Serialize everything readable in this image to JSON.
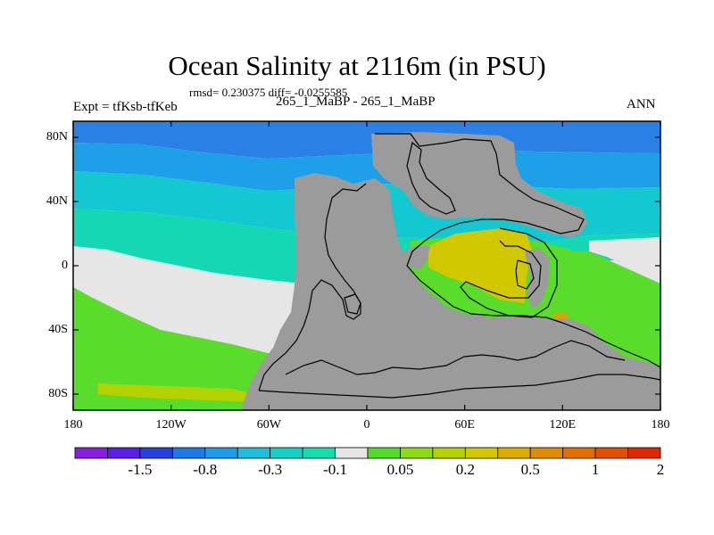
{
  "title": "Ocean Salinity at 2116m (in PSU)",
  "stats": "rmsd= 0.230375 diff= -0.0255585",
  "experiment": "Expt = tfKsb-tfKeb",
  "runs": "265_1_MaBP - 265_1_MaBP",
  "season": "ANN",
  "map": {
    "lon_range": [
      -180,
      180
    ],
    "lat_range": [
      -90,
      90
    ],
    "land_color": "#9b9b9b",
    "x_ticks": [
      {
        "lon": -180,
        "label": "180"
      },
      {
        "lon": -120,
        "label": "120W"
      },
      {
        "lon": -60,
        "label": "60W"
      },
      {
        "lon": 0,
        "label": "0"
      },
      {
        "lon": 60,
        "label": "60E"
      },
      {
        "lon": 120,
        "label": "120E"
      },
      {
        "lon": 180,
        "label": "180"
      }
    ],
    "y_ticks": [
      {
        "lat": 80,
        "label": "80N"
      },
      {
        "lat": 40,
        "label": "40N"
      },
      {
        "lat": 0,
        "label": "0"
      },
      {
        "lat": -40,
        "label": "40S"
      },
      {
        "lat": -80,
        "label": "80S"
      }
    ]
  },
  "colorbar": {
    "colors": [
      "#8a1ee0",
      "#5a1ee6",
      "#2840dc",
      "#1e78e6",
      "#1e9ae8",
      "#1ebedc",
      "#14d2c8",
      "#14dcaa",
      "#e6e6e6",
      "#50dc28",
      "#8cdc14",
      "#b4d200",
      "#d2c800",
      "#dcaa00",
      "#e08c00",
      "#e06e00",
      "#e05000",
      "#dc2800"
    ],
    "labels": [
      {
        "index": 2,
        "label": "-1.5"
      },
      {
        "index": 4,
        "label": "-0.8"
      },
      {
        "index": 6,
        "label": "-0.3"
      },
      {
        "index": 8,
        "label": "-0.1"
      },
      {
        "index": 10,
        "label": "0.05"
      },
      {
        "index": 12,
        "label": "0.2"
      },
      {
        "index": 14,
        "label": "0.5"
      },
      {
        "index": 16,
        "label": "1"
      },
      {
        "index": 18,
        "label": "2"
      }
    ]
  },
  "colors": {
    "blue": "#2a80e4",
    "light_blue": "#1ea0e8",
    "cyan": "#14c8d2",
    "teal": "#14d8b4",
    "neutral": "#e6e6e6",
    "green": "#5adc2a",
    "yellow": "#d2c800",
    "orange": "#e0a000"
  }
}
